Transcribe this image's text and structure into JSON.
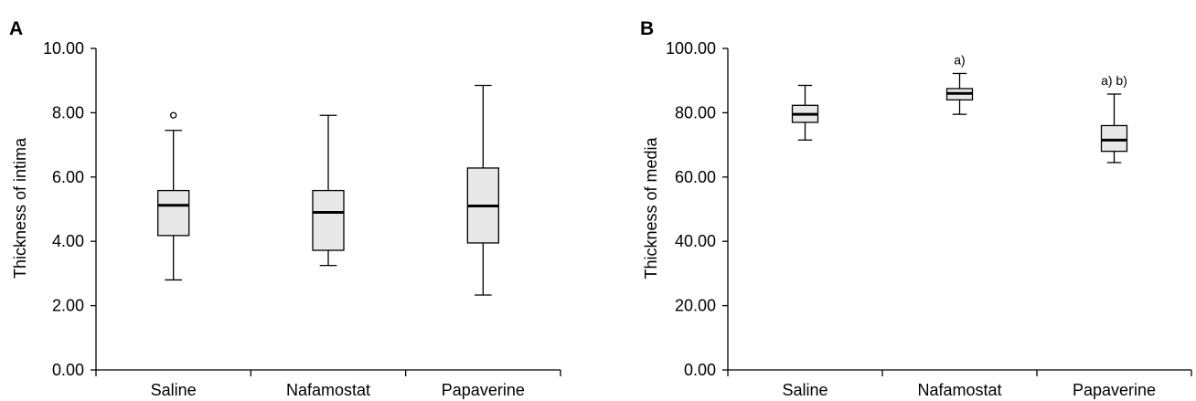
{
  "chart_data": [
    {
      "type": "boxplot",
      "panel": "A",
      "title": "",
      "xlabel": "",
      "ylabel": "Thickness of intima",
      "ylim": [
        0,
        10
      ],
      "yticks": [
        "0.00",
        "2.00",
        "4.00",
        "6.00",
        "8.00",
        "10.00"
      ],
      "grid": false,
      "categories": [
        "Saline",
        "Nafamostat",
        "Papaverine"
      ],
      "boxes": [
        {
          "min": 2.8,
          "q1": 4.18,
          "median": 5.12,
          "q3": 5.58,
          "max": 7.45,
          "outliers": [
            7.92
          ],
          "annotation": ""
        },
        {
          "min": 3.25,
          "q1": 3.72,
          "median": 4.9,
          "q3": 5.58,
          "max": 7.92,
          "outliers": [],
          "annotation": ""
        },
        {
          "min": 2.33,
          "q1": 3.95,
          "median": 5.1,
          "q3": 6.28,
          "max": 8.85,
          "outliers": [],
          "annotation": ""
        }
      ]
    },
    {
      "type": "boxplot",
      "panel": "B",
      "title": "",
      "xlabel": "",
      "ylabel": "Thickness of media",
      "ylim": [
        0,
        100
      ],
      "yticks": [
        "0.00",
        "20.00",
        "40.00",
        "60.00",
        "80.00",
        "100.00"
      ],
      "grid": false,
      "categories": [
        "Saline",
        "Nafamostat",
        "Papaverine"
      ],
      "boxes": [
        {
          "min": 71.5,
          "q1": 77.0,
          "median": 79.5,
          "q3": 82.3,
          "max": 88.5,
          "outliers": [],
          "annotation": ""
        },
        {
          "min": 79.5,
          "q1": 84.0,
          "median": 86.0,
          "q3": 87.5,
          "max": 92.2,
          "outliers": [],
          "annotation": "a)"
        },
        {
          "min": 64.5,
          "q1": 68.0,
          "median": 71.5,
          "q3": 76.0,
          "max": 85.8,
          "outliers": [],
          "annotation": "a) b)"
        }
      ]
    }
  ],
  "colors": {
    "box_fill": "#e8e8e8",
    "stroke": "#000000",
    "background": "#ffffff"
  }
}
